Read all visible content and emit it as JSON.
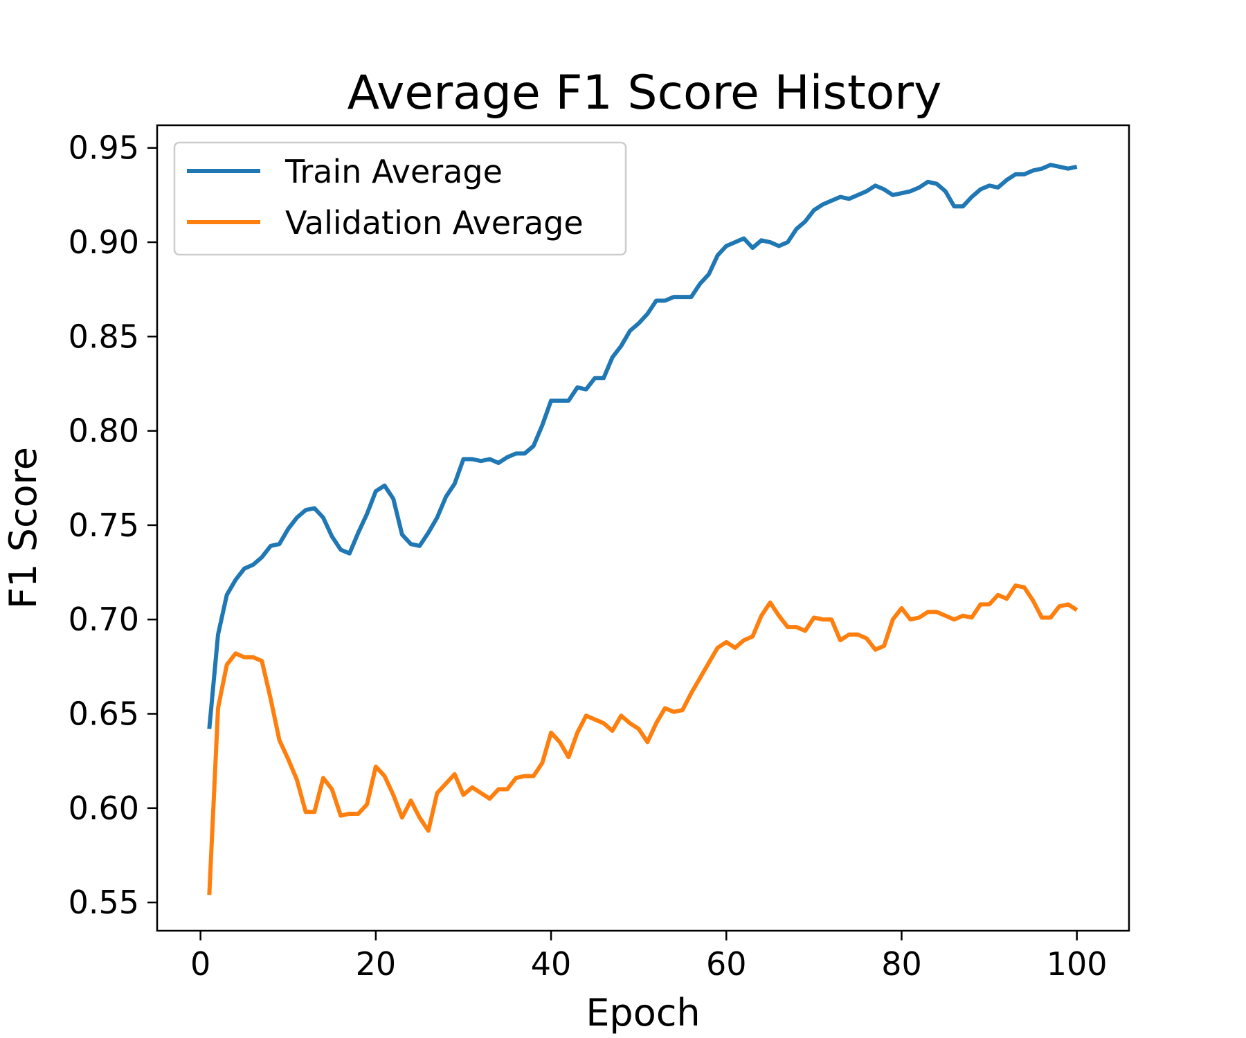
{
  "chart_data": {
    "type": "line",
    "title": "Average F1 Score History",
    "xlabel": "Epoch",
    "ylabel": "F1 Score",
    "xlim": [
      -4.95,
      105.95
    ],
    "ylim": [
      0.535,
      0.962
    ],
    "xticks": [
      0,
      20,
      40,
      60,
      80,
      100
    ],
    "xtick_labels": [
      "0",
      "20",
      "40",
      "60",
      "80",
      "100"
    ],
    "yticks": [
      0.55,
      0.6,
      0.65,
      0.7,
      0.75,
      0.8,
      0.85,
      0.9,
      0.95
    ],
    "ytick_labels": [
      "0.55",
      "0.60",
      "0.65",
      "0.70",
      "0.75",
      "0.80",
      "0.85",
      "0.90",
      "0.95"
    ],
    "grid": false,
    "legend_position": "upper-left",
    "series": [
      {
        "name": "Train Average",
        "color": "#1f77b4",
        "x": [
          1,
          2,
          3,
          4,
          5,
          6,
          7,
          8,
          9,
          10,
          11,
          12,
          13,
          14,
          15,
          16,
          17,
          18,
          19,
          20,
          21,
          22,
          23,
          24,
          25,
          26,
          27,
          28,
          29,
          30,
          31,
          32,
          33,
          34,
          35,
          36,
          37,
          38,
          39,
          40,
          41,
          42,
          43,
          44,
          45,
          46,
          47,
          48,
          49,
          50,
          51,
          52,
          53,
          54,
          55,
          56,
          57,
          58,
          59,
          60,
          61,
          62,
          63,
          64,
          65,
          66,
          67,
          68,
          69,
          70,
          71,
          72,
          73,
          74,
          75,
          76,
          77,
          78,
          79,
          80,
          81,
          82,
          83,
          84,
          85,
          86,
          87,
          88,
          89,
          90,
          91,
          92,
          93,
          94,
          95,
          96,
          97,
          98,
          99,
          100
        ],
        "y": [
          0.642,
          0.692,
          0.713,
          0.721,
          0.727,
          0.729,
          0.733,
          0.739,
          0.74,
          0.748,
          0.754,
          0.758,
          0.759,
          0.754,
          0.744,
          0.737,
          0.735,
          0.746,
          0.756,
          0.768,
          0.771,
          0.764,
          0.745,
          0.74,
          0.739,
          0.746,
          0.754,
          0.765,
          0.772,
          0.785,
          0.785,
          0.784,
          0.785,
          0.783,
          0.786,
          0.788,
          0.788,
          0.792,
          0.803,
          0.816,
          0.816,
          0.816,
          0.823,
          0.822,
          0.828,
          0.828,
          0.839,
          0.845,
          0.853,
          0.857,
          0.862,
          0.869,
          0.869,
          0.871,
          0.871,
          0.871,
          0.878,
          0.883,
          0.893,
          0.898,
          0.9,
          0.902,
          0.897,
          0.901,
          0.9,
          0.898,
          0.9,
          0.907,
          0.911,
          0.917,
          0.92,
          0.922,
          0.924,
          0.923,
          0.925,
          0.927,
          0.93,
          0.928,
          0.925,
          0.926,
          0.927,
          0.929,
          0.932,
          0.931,
          0.927,
          0.919,
          0.919,
          0.924,
          0.928,
          0.93,
          0.929,
          0.933,
          0.936,
          0.936,
          0.938,
          0.939,
          0.941,
          0.94,
          0.939,
          0.94
        ]
      },
      {
        "name": "Validation Average",
        "color": "#ff7f0e",
        "x": [
          1,
          2,
          3,
          4,
          5,
          6,
          7,
          8,
          9,
          10,
          11,
          12,
          13,
          14,
          15,
          16,
          17,
          18,
          19,
          20,
          21,
          22,
          23,
          24,
          25,
          26,
          27,
          28,
          29,
          30,
          31,
          32,
          33,
          34,
          35,
          36,
          37,
          38,
          39,
          40,
          41,
          42,
          43,
          44,
          45,
          46,
          47,
          48,
          49,
          50,
          51,
          52,
          53,
          54,
          55,
          56,
          57,
          58,
          59,
          60,
          61,
          62,
          63,
          64,
          65,
          66,
          67,
          68,
          69,
          70,
          71,
          72,
          73,
          74,
          75,
          76,
          77,
          78,
          79,
          80,
          81,
          82,
          83,
          84,
          85,
          86,
          87,
          88,
          89,
          90,
          91,
          92,
          93,
          94,
          95,
          96,
          97,
          98,
          99,
          100
        ],
        "y": [
          0.554,
          0.653,
          0.676,
          0.682,
          0.68,
          0.68,
          0.678,
          0.658,
          0.636,
          0.626,
          0.615,
          0.598,
          0.598,
          0.616,
          0.61,
          0.596,
          0.597,
          0.597,
          0.602,
          0.622,
          0.617,
          0.607,
          0.595,
          0.604,
          0.595,
          0.588,
          0.608,
          0.613,
          0.618,
          0.607,
          0.611,
          0.608,
          0.605,
          0.61,
          0.61,
          0.616,
          0.617,
          0.617,
          0.624,
          0.64,
          0.635,
          0.627,
          0.64,
          0.649,
          0.647,
          0.645,
          0.641,
          0.649,
          0.645,
          0.642,
          0.635,
          0.645,
          0.653,
          0.651,
          0.652,
          0.661,
          0.669,
          0.677,
          0.685,
          0.688,
          0.685,
          0.689,
          0.691,
          0.702,
          0.709,
          0.702,
          0.696,
          0.696,
          0.694,
          0.701,
          0.7,
          0.7,
          0.689,
          0.692,
          0.692,
          0.69,
          0.684,
          0.686,
          0.7,
          0.706,
          0.7,
          0.701,
          0.704,
          0.704,
          0.702,
          0.7,
          0.702,
          0.701,
          0.708,
          0.708,
          0.713,
          0.711,
          0.718,
          0.717,
          0.71,
          0.701,
          0.701,
          0.707,
          0.708,
          0.705
        ]
      }
    ]
  }
}
